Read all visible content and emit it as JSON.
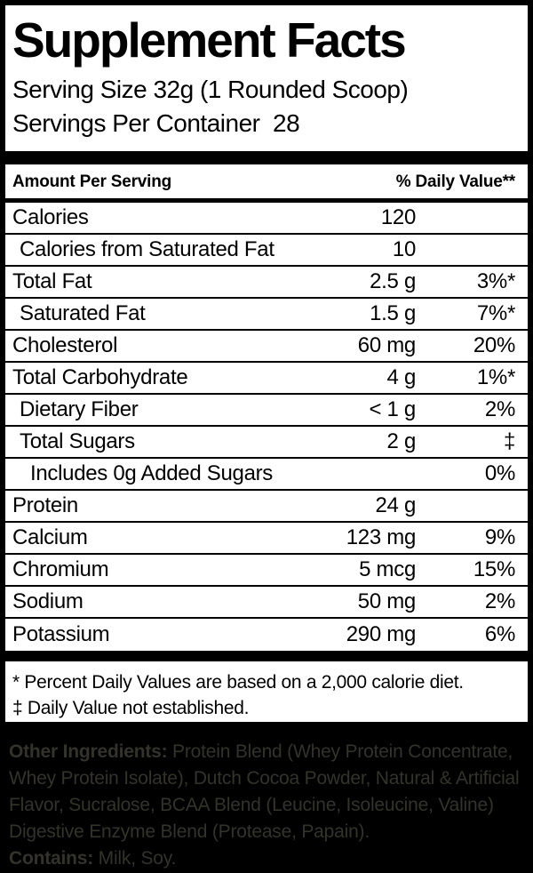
{
  "panel": {
    "title": "Supplement Facts",
    "serving_size": "Serving Size 32g (1 Rounded Scoop)",
    "servings_per_container": "Servings Per Container  28",
    "header": {
      "left": "Amount Per Serving",
      "right": "% Daily Value**"
    },
    "rows": [
      {
        "name": "Calories",
        "amount": "120",
        "dv": "",
        "indent": 0
      },
      {
        "name": "Calories from Saturated Fat",
        "amount": "10",
        "dv": "",
        "indent": 1
      },
      {
        "name": "Total Fat",
        "amount": "2.5 g",
        "dv": "3%*",
        "indent": 0
      },
      {
        "name": "Saturated Fat",
        "amount": "1.5 g",
        "dv": "7%*",
        "indent": 1
      },
      {
        "name": "Cholesterol",
        "amount": "60 mg",
        "dv": "20%",
        "indent": 0
      },
      {
        "name": "Total Carbohydrate",
        "amount": "4 g",
        "dv": "1%*",
        "indent": 0
      },
      {
        "name": "Dietary Fiber",
        "amount": "< 1 g",
        "dv": "2%",
        "indent": 1
      },
      {
        "name": "Total Sugars",
        "amount": "2 g",
        "dv": "‡",
        "indent": 1
      },
      {
        "name": "Includes 0g Added Sugars",
        "amount": "",
        "dv": "0%",
        "indent": 2
      },
      {
        "name": "Protein",
        "amount": "24 g",
        "dv": "",
        "indent": 0
      },
      {
        "name": "Calcium",
        "amount": "123 mg",
        "dv": "9%",
        "indent": 0
      },
      {
        "name": "Chromium",
        "amount": "5 mcg",
        "dv": "15%",
        "indent": 0
      },
      {
        "name": "Sodium",
        "amount": "50 mg",
        "dv": "2%",
        "indent": 0
      },
      {
        "name": "Potassium",
        "amount": "290 mg",
        "dv": "6%",
        "indent": 0
      }
    ],
    "footnotes": {
      "percent": "* Percent Daily Values are based on a 2,000 calorie diet.",
      "dagger": "‡ Daily Value not established."
    }
  },
  "ingredients": {
    "other_label": "Other Ingredients:",
    "other_text": " Protein Blend (Whey Protein Concentrate, Whey Protein Isolate), Dutch Cocoa Powder, Natural & Artificial Flavor, Sucralose, BCAA Blend (Leucine, Isoleucine, Valine) Digestive Enzyme Blend (Protease, Papain).",
    "contains_label": "Contains:",
    "contains_text": " Milk, Soy."
  },
  "colors": {
    "panel_background": "#ffffff",
    "border_and_text": "#000000",
    "page_background": "#000000",
    "ingredients_text": "#33332b"
  }
}
